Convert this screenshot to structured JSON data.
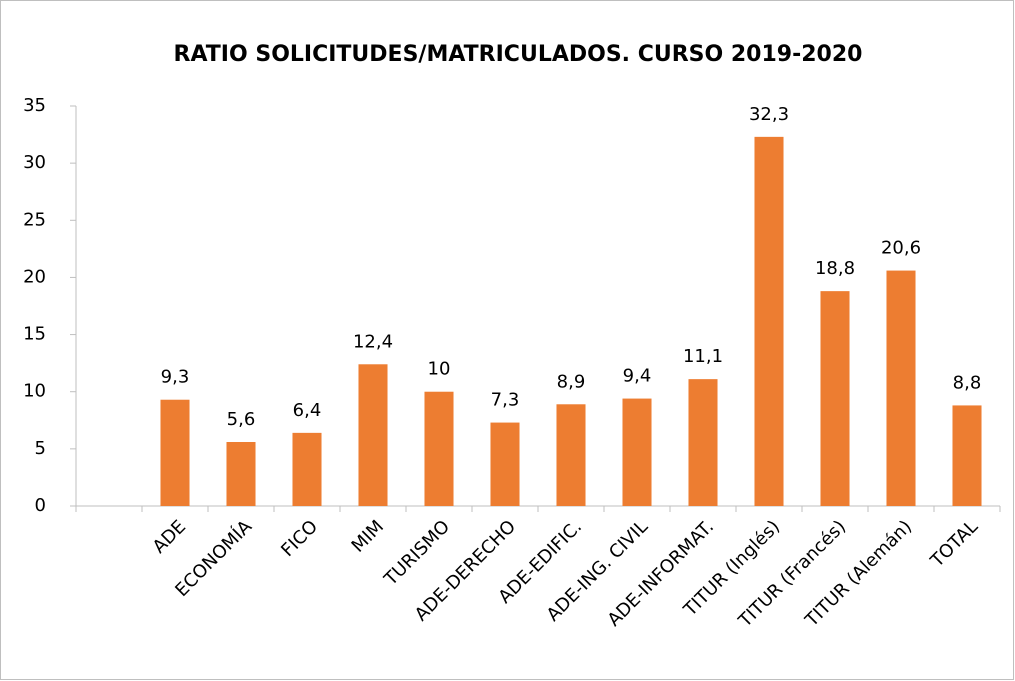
{
  "chart_data": {
    "type": "bar",
    "title": "RATIO SOLICITUDES/MATRICULADOS. CURSO 2019-2020",
    "categories": [
      null,
      "ADE",
      "ECONOMÍA",
      "FICO",
      "MIM",
      "TURISMO",
      "ADE-DERECHO",
      "ADE-EDIFIC.",
      "ADE-ING. CIVIL",
      "ADE-INFORMAT.",
      "TITUR (Inglés)",
      "TITUR (Francés)",
      "TITUR (Alemán)",
      "TOTAL"
    ],
    "values": [
      null,
      9.3,
      5.6,
      6.4,
      12.4,
      10,
      7.3,
      8.9,
      9.4,
      11.1,
      32.3,
      18.8,
      20.6,
      8.8
    ],
    "value_labels": [
      null,
      "9,3",
      "5,6",
      "6,4",
      "12,4",
      "10",
      "7,3",
      "8,9",
      "9,4",
      "11,1",
      "32,3",
      "18,8",
      "20,6",
      "8,8"
    ],
    "color": "#ed7d31",
    "ylim": [
      0,
      35
    ],
    "yticks": [
      0,
      5,
      10,
      15,
      20,
      25,
      30,
      35
    ],
    "grid": false
  }
}
